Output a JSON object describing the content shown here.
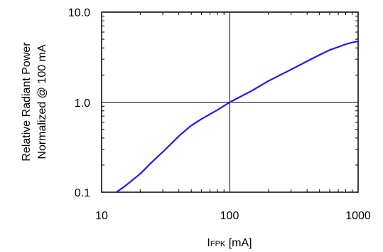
{
  "chart_data": {
    "type": "line",
    "title": "",
    "xscale": "log",
    "yscale": "log",
    "xlim": [
      10,
      1000
    ],
    "ylim": [
      0.1,
      10
    ],
    "xticks": [
      "10",
      "100",
      "1000"
    ],
    "yticks": [
      "10.0",
      "1.0",
      "0.1"
    ],
    "xlabel": {
      "main": "I",
      "subscript": "FPK",
      "unit": " [mA]"
    },
    "ylabel": [
      "Relative Radiant Power",
      "Normalized @ 100 mA"
    ],
    "grid": true,
    "line_color": "#1f1fe0",
    "series": [
      {
        "x": [
          13,
          15,
          20,
          25,
          30,
          40,
          50,
          60,
          80,
          100,
          150,
          200,
          300,
          400,
          500,
          600,
          700,
          800,
          900,
          1000
        ],
        "y": [
          0.1,
          0.115,
          0.16,
          0.22,
          0.28,
          0.42,
          0.55,
          0.65,
          0.82,
          1.0,
          1.35,
          1.72,
          2.3,
          2.85,
          3.35,
          3.8,
          4.1,
          4.4,
          4.6,
          4.75
        ]
      }
    ]
  }
}
